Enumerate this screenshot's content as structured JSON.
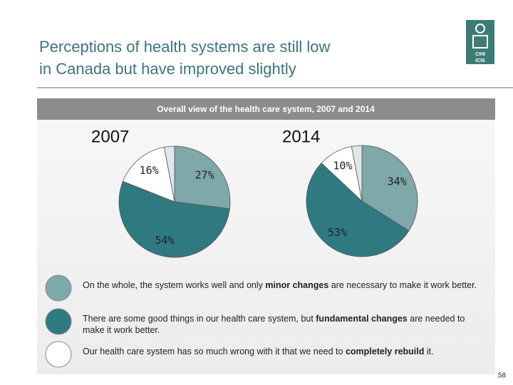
{
  "title": [
    "Perceptions of health systems are still low",
    "in Canada but have improved slightly"
  ],
  "logo": [
    "CIHI",
    "ICIS"
  ],
  "panel_title": "Overall view of the health care system, 2007 and 2014",
  "chart_data": [
    {
      "type": "pie",
      "title": "2007",
      "values": [
        27,
        54,
        16,
        3
      ],
      "value_labels": [
        "27%",
        "54%",
        "16%",
        null
      ],
      "colors": [
        "#7ea8aa",
        "#2f7a80",
        "#ffffff",
        "#dfe7e9"
      ]
    },
    {
      "type": "pie",
      "title": "2014",
      "values": [
        34,
        53,
        10,
        3
      ],
      "value_labels": [
        "34%",
        "53%",
        "10%",
        null
      ],
      "colors": [
        "#7ea8aa",
        "#2f7a80",
        "#ffffff",
        "#dfe7e9"
      ]
    }
  ],
  "legend": [
    [
      "On the whole, the system works well and only ",
      "minor changes",
      " are necessary to make it work better."
    ],
    [
      "There are some good things in our health care system, but ",
      "fundamental changes",
      " are needed to make it work better."
    ],
    [
      "Our health care system has so much wrong with it that we need to ",
      "completely rebuild",
      " it."
    ]
  ],
  "page_number": "58"
}
